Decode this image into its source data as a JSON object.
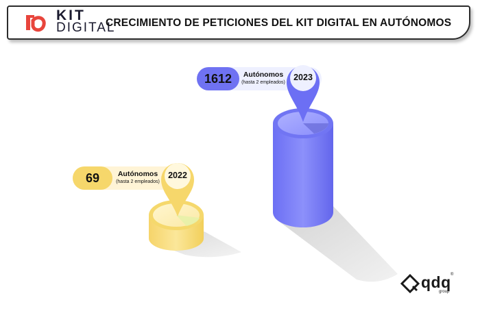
{
  "header": {
    "logo_kit": "KIT",
    "logo_digital": "DIGITAL",
    "title": "CRECIMIENTO DE PETICIONES DEL KIT DIGITAL EN AUTÓNOMOS"
  },
  "chart_data": {
    "type": "bar",
    "categories": [
      "2022",
      "2023"
    ],
    "values": [
      69,
      1612
    ],
    "series_label": "Autónomos",
    "series_sublabel": "(hasta 2 empleados)",
    "colors": {
      "2022": "#f7d96a",
      "2023": "#7b7ef7"
    }
  },
  "labels": {
    "left": {
      "value": "69",
      "main": "Autónomos",
      "sub": "(hasta 2 empleados)",
      "year": "2022"
    },
    "right": {
      "value": "1612",
      "main": "Autónomos",
      "sub": "(hasta 2 empleados)",
      "year": "2023"
    }
  },
  "brand": {
    "name": "qdq",
    "sub": "group",
    "reg": "®"
  },
  "colors": {
    "brand_red": "#e8453c",
    "blue": "#7b7ef7",
    "yellow": "#f7d96a"
  }
}
